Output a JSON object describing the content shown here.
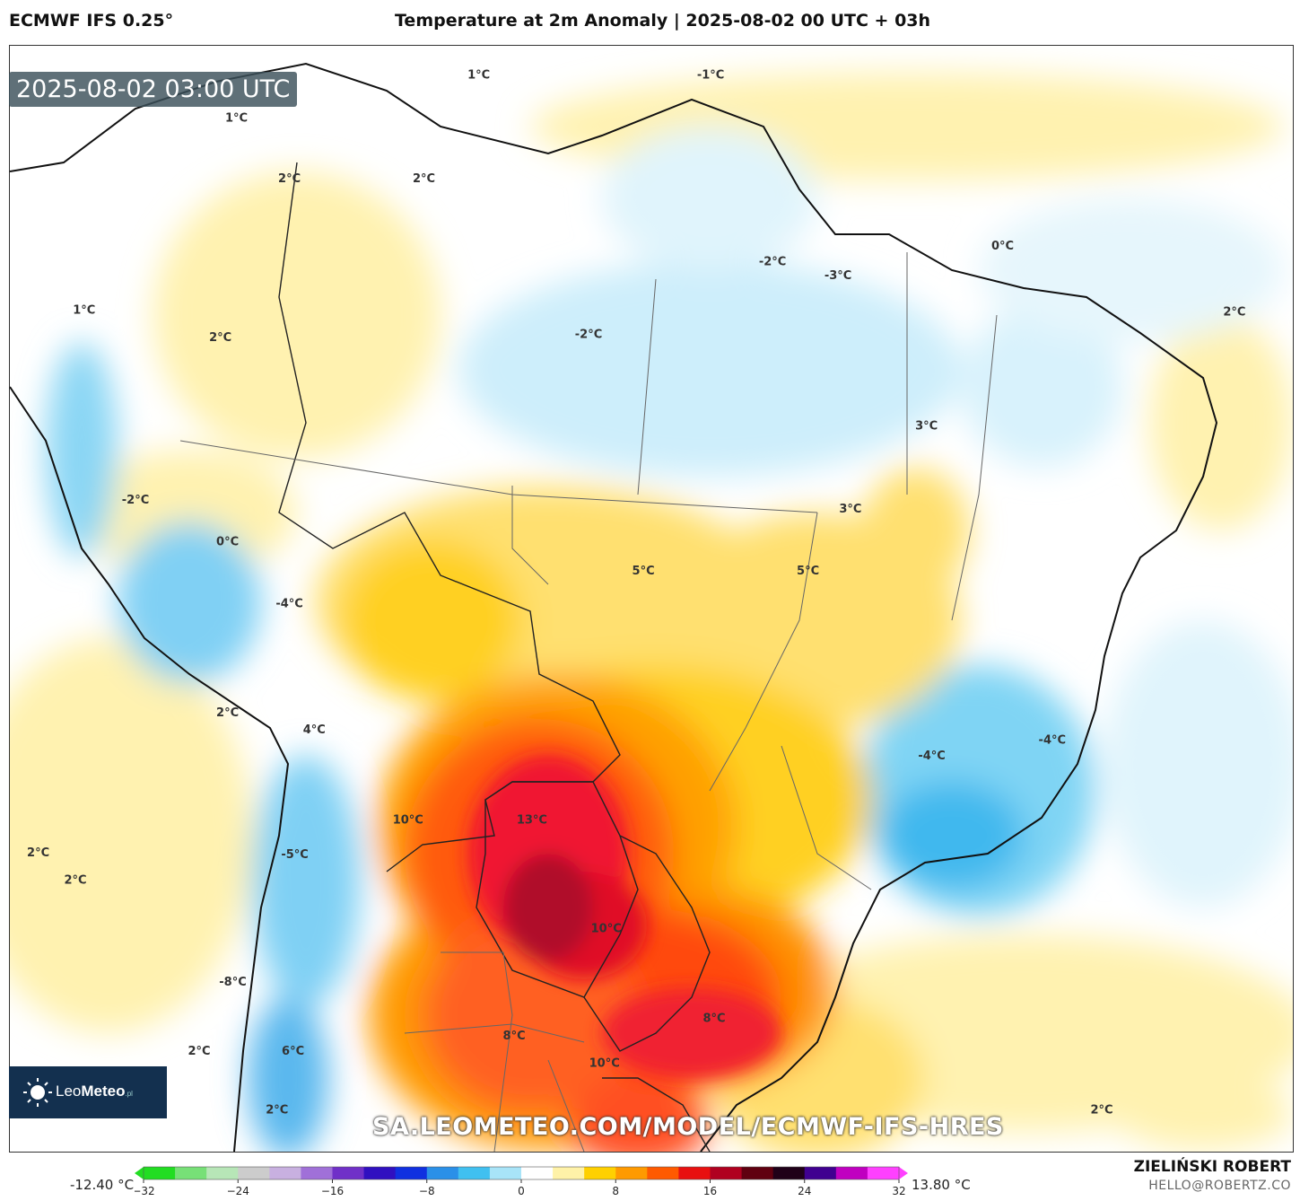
{
  "header": {
    "model": "ECMWF IFS 0.25°",
    "title": "Temperature at 2m Anomaly | 2025-08-02 00 UTC + 03h"
  },
  "valid_time": "2025-08-02 03:00 UTC",
  "watermark_url": "SA.LEOMETEO.COM/MODEL/ECMWF-IFS-HRES",
  "logo": {
    "name_a": "Leo",
    "name_b": "Meteo",
    "suffix": ".pl",
    "icon": "sun-icon"
  },
  "author": "ZIELIŃSKI ROBERT",
  "email": "HELLO@ROBERTZ.CO",
  "colorbar": {
    "min_label": "-12.40 °C",
    "max_label": "13.80 °C",
    "range": [
      -32,
      32
    ],
    "ticks": [
      "−32",
      "−24",
      "−16",
      "−8",
      "0",
      "8",
      "16",
      "24",
      "32"
    ],
    "colors": [
      "#22dd22",
      "#77e077",
      "#b7e6b7",
      "#cccccc",
      "#c8b0e0",
      "#a070d8",
      "#7030c8",
      "#3010c0",
      "#1030e0",
      "#2a90e8",
      "#40c0f0",
      "#a8e4f8",
      "#ffffff",
      "#fff2a8",
      "#ffd000",
      "#ff9a00",
      "#ff5a00",
      "#e81010",
      "#b00020",
      "#600010",
      "#200018",
      "#400090",
      "#c000c0",
      "#ff40ff"
    ]
  },
  "anomaly_labels": [
    {
      "text": "1°C",
      "lon": -55.5,
      "lat": 4.6
    },
    {
      "text": "-1°C",
      "lon": -42.4,
      "lat": 4.6
    },
    {
      "text": "1°C",
      "lon": -69.2,
      "lat": 2.1
    },
    {
      "text": "2°C",
      "lon": -66.2,
      "lat": -1.4
    },
    {
      "text": "2°C",
      "lon": -58.6,
      "lat": -1.4
    },
    {
      "text": "-2°C",
      "lon": -38.9,
      "lat": -6.2
    },
    {
      "text": "-3°C",
      "lon": -35.2,
      "lat": -7.0
    },
    {
      "text": "0°C",
      "lon": -25.9,
      "lat": -5.3
    },
    {
      "text": "1°C",
      "lon": -77.8,
      "lat": -9.0
    },
    {
      "text": "2°C",
      "lon": -70.1,
      "lat": -10.6
    },
    {
      "text": "-2°C",
      "lon": -49.3,
      "lat": -10.4
    },
    {
      "text": "2°C",
      "lon": -12.8,
      "lat": -9.1
    },
    {
      "text": "3°C",
      "lon": -30.2,
      "lat": -15.7
    },
    {
      "text": "-2°C",
      "lon": -74.9,
      "lat": -20.0
    },
    {
      "text": "3°C",
      "lon": -34.5,
      "lat": -20.5
    },
    {
      "text": "0°C",
      "lon": -69.7,
      "lat": -22.4
    },
    {
      "text": "5°C",
      "lon": -46.2,
      "lat": -24.1
    },
    {
      "text": "5°C",
      "lon": -36.9,
      "lat": -24.1
    },
    {
      "text": "-4°C",
      "lon": -66.2,
      "lat": -26.0
    },
    {
      "text": "2°C",
      "lon": -69.7,
      "lat": -32.3
    },
    {
      "text": "4°C",
      "lon": -64.8,
      "lat": -33.3
    },
    {
      "text": "-4°C",
      "lon": -23.1,
      "lat": -33.9
    },
    {
      "text": "-4°C",
      "lon": -29.9,
      "lat": -34.8
    },
    {
      "text": "10°C",
      "lon": -59.5,
      "lat": -38.5
    },
    {
      "text": "13°C",
      "lon": -52.5,
      "lat": -38.5
    },
    {
      "text": "2°C",
      "lon": -80.4,
      "lat": -40.4
    },
    {
      "text": "-5°C",
      "lon": -65.9,
      "lat": -40.5
    },
    {
      "text": "2°C",
      "lon": -78.3,
      "lat": -42.0
    },
    {
      "text": "10°C",
      "lon": -48.3,
      "lat": -44.8
    },
    {
      "text": "-8°C",
      "lon": -69.4,
      "lat": -47.9
    },
    {
      "text": "8°C",
      "lon": -42.2,
      "lat": -50.0
    },
    {
      "text": "8°C",
      "lon": -53.5,
      "lat": -51.0
    },
    {
      "text": "2°C",
      "lon": -71.3,
      "lat": -51.9
    },
    {
      "text": "6°C",
      "lon": -66.0,
      "lat": -51.9
    },
    {
      "text": "10°C",
      "lon": -48.4,
      "lat": -52.6
    },
    {
      "text": "2°C",
      "lon": -66.9,
      "lat": -55.3
    },
    {
      "text": "2°C",
      "lon": -20.3,
      "lat": -55.3
    }
  ]
}
